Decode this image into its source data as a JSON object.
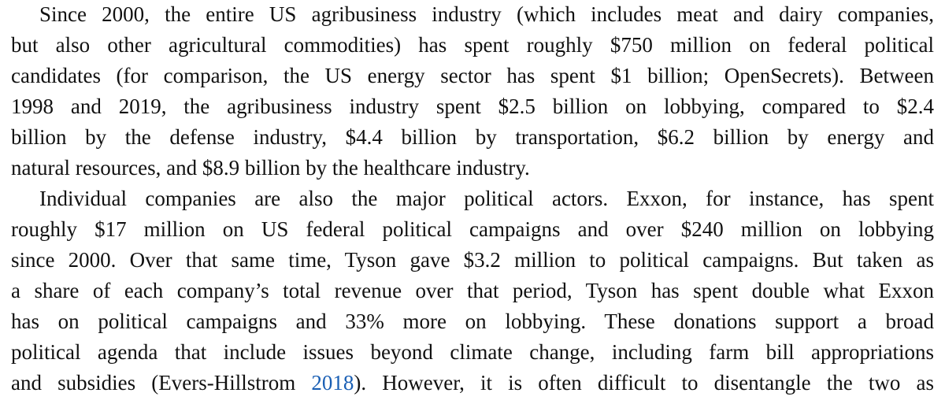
{
  "paragraphs": [
    {
      "lines": [
        "Since 2000, the entire US agribusiness industry (which includes meat and dairy companies,",
        "but also other agricultural commodities) has spent roughly $750 million on federal political",
        "candidates (for comparison, the US energy sector has spent $1 billion; OpenSecrets). Between",
        "1998 and 2019, the agribusiness industry spent $2.5 billion on lobbying, compared to $2.4",
        "billion by the defense industry, $4.4 billion by transportation, $6.2 billion by energy and",
        "natural resources, and $8.9 billion by the healthcare industry."
      ]
    },
    {
      "lines": [
        "Individual companies are also the major political actors. Exxon, for instance, has spent",
        "roughly $17 million on US federal political campaigns and over $240 million on lobbying",
        "since 2000. Over that same time, Tyson gave $3.2 million to political campaigns. But taken as",
        "a share of each company’s total revenue over that period, Tyson has spent double what Exxon",
        "has on political campaigns and 33% more on lobbying. These donations support a broad",
        "political agenda that include issues beyond climate change, including farm bill appropriations"
      ],
      "last_line": {
        "before": "and subsidies (Evers-Hillstrom ",
        "citation": "2018",
        "after": "). However, it is often difficult to disentangle the two as"
      }
    }
  ],
  "colors": {
    "text": "#111111",
    "citation_link": "#1a5fb4"
  }
}
